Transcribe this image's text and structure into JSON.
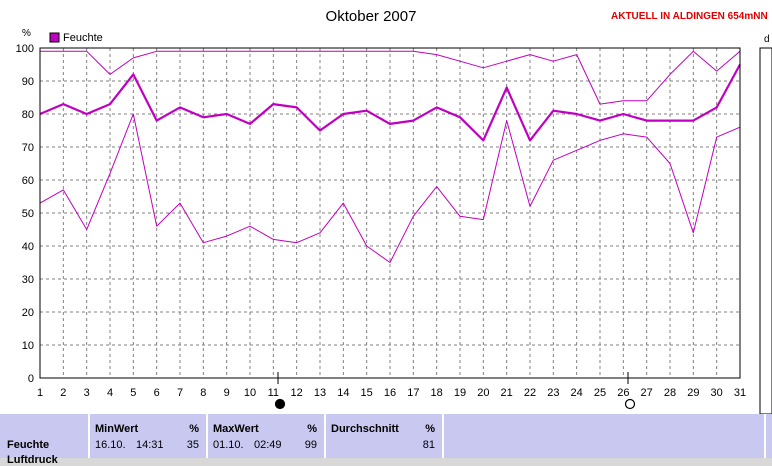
{
  "header": {
    "title": "Oktober 2007",
    "station": "AKTUELL IN ALDINGEN 654mNN",
    "right_edge_label": "d"
  },
  "legend": {
    "label": "Feuchte",
    "color": "#c000c0"
  },
  "axis": {
    "unit": "%"
  },
  "chart_data": {
    "type": "line",
    "title": "Oktober 2007",
    "ylabel": "%",
    "xlabel": "",
    "x": [
      1,
      2,
      3,
      4,
      5,
      6,
      7,
      8,
      9,
      10,
      11,
      12,
      13,
      14,
      15,
      16,
      17,
      18,
      19,
      20,
      21,
      22,
      23,
      24,
      25,
      26,
      27,
      28,
      29,
      30,
      31
    ],
    "ylim": [
      0,
      100
    ],
    "yticks": [
      0,
      10,
      20,
      30,
      40,
      50,
      60,
      70,
      80,
      90,
      100
    ],
    "grid": true,
    "legend_position": "top-left",
    "series": [
      {
        "name": "Feuchte",
        "role": "max",
        "values": [
          99,
          99,
          99,
          92,
          97,
          99,
          99,
          99,
          99,
          99,
          99,
          99,
          99,
          99,
          99,
          99,
          99,
          98,
          96,
          94,
          96,
          98,
          96,
          98,
          83,
          84,
          84,
          92,
          99,
          93,
          99
        ]
      },
      {
        "name": "Feuchte",
        "role": "avg",
        "values": [
          80,
          83,
          80,
          83,
          92,
          78,
          82,
          79,
          80,
          77,
          83,
          82,
          75,
          80,
          81,
          77,
          78,
          82,
          79,
          72,
          88,
          72,
          81,
          80,
          78,
          80,
          78,
          78,
          78,
          82,
          95
        ]
      },
      {
        "name": "Feuchte",
        "role": "min",
        "values": [
          53,
          57,
          45,
          62,
          80,
          46,
          53,
          41,
          43,
          46,
          42,
          41,
          44,
          53,
          40,
          35,
          49,
          58,
          49,
          48,
          78,
          52,
          66,
          69,
          72,
          74,
          73,
          65,
          44,
          73,
          76
        ]
      }
    ],
    "moon_phases": [
      {
        "day": 11.2,
        "phase": "new"
      },
      {
        "day": 26.2,
        "phase": "full"
      }
    ]
  },
  "stats": {
    "row_label": "Feuchte",
    "row_label_next": "Luftdruck",
    "min": {
      "header": "MinWert",
      "unit": "%",
      "date": "16.10.",
      "time": "14:31",
      "value": "35"
    },
    "max": {
      "header": "MaxWert",
      "unit": "%",
      "date": "01.10.",
      "time": "02:49",
      "value": "99"
    },
    "avg": {
      "header": "Durchschnitt",
      "unit": "%",
      "value": "81"
    }
  }
}
